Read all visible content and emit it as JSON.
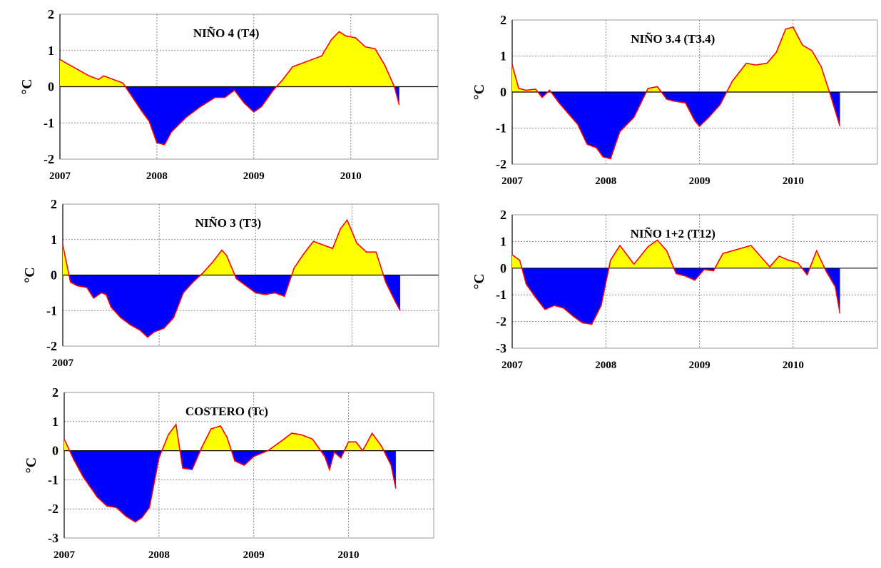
{
  "colors": {
    "positive": "#ffff00",
    "negative": "#0000ff",
    "line": "#ff0000"
  },
  "chart_data": [
    {
      "id": "nino4",
      "type": "area",
      "title": "NIÑO 4 (T4)",
      "ylabel": "°C",
      "ylim": [
        -2,
        2
      ],
      "yticks": [
        "2",
        "1",
        "0",
        "-1",
        "-2"
      ],
      "xlim": [
        2007,
        2010.9
      ],
      "xticks": [
        "2007",
        "2008",
        "2009",
        "2010"
      ],
      "grid": true,
      "series": [
        {
          "x": [
            2007.0,
            2007.1,
            2007.2,
            2007.3,
            2007.4,
            2007.45,
            2007.55,
            2007.65,
            2007.75,
            2007.85,
            2007.92,
            2008.0,
            2008.08,
            2008.15,
            2008.3,
            2008.45,
            2008.6,
            2008.7,
            2008.8,
            2008.9,
            2009.0,
            2009.08,
            2009.2,
            2009.3,
            2009.4,
            2009.5,
            2009.6,
            2009.7,
            2009.8,
            2009.88,
            2009.95,
            2010.05,
            2010.15,
            2010.25,
            2010.35,
            2010.45,
            2010.5
          ],
          "y": [
            0.75,
            0.6,
            0.45,
            0.3,
            0.2,
            0.3,
            0.2,
            0.1,
            -0.3,
            -0.7,
            -0.95,
            -1.55,
            -1.6,
            -1.25,
            -0.85,
            -0.55,
            -0.3,
            -0.3,
            -0.1,
            -0.45,
            -0.7,
            -0.55,
            -0.1,
            0.2,
            0.55,
            0.65,
            0.75,
            0.85,
            1.3,
            1.52,
            1.4,
            1.35,
            1.1,
            1.05,
            0.6,
            0.0,
            -0.5
          ]
        }
      ]
    },
    {
      "id": "nino34",
      "type": "area",
      "title": "NIÑO 3.4 (T3.4)",
      "ylabel": "°C",
      "ylim": [
        -2,
        2
      ],
      "yticks": [
        "2",
        "1",
        "0",
        "-1",
        "-2"
      ],
      "xlim": [
        2007,
        2010.9
      ],
      "xticks": [
        "2007",
        "2008",
        "2009",
        "2010"
      ],
      "grid": true,
      "series": [
        {
          "x": [
            2007.0,
            2007.07,
            2007.15,
            2007.25,
            2007.32,
            2007.4,
            2007.5,
            2007.6,
            2007.7,
            2007.8,
            2007.9,
            2007.97,
            2008.05,
            2008.15,
            2008.3,
            2008.45,
            2008.55,
            2008.65,
            2008.72,
            2008.85,
            2008.95,
            2009.0,
            2009.1,
            2009.22,
            2009.35,
            2009.5,
            2009.6,
            2009.72,
            2009.82,
            2009.92,
            2010.0,
            2010.1,
            2010.2,
            2010.3,
            2010.4,
            2010.5
          ],
          "y": [
            0.75,
            0.1,
            0.05,
            0.08,
            -0.15,
            0.05,
            -0.3,
            -0.6,
            -0.9,
            -1.45,
            -1.55,
            -1.8,
            -1.85,
            -1.1,
            -0.7,
            0.1,
            0.15,
            -0.2,
            -0.25,
            -0.3,
            -0.8,
            -0.95,
            -0.7,
            -0.35,
            0.3,
            0.8,
            0.75,
            0.8,
            1.1,
            1.75,
            1.8,
            1.3,
            1.15,
            0.7,
            -0.1,
            -0.95
          ]
        }
      ]
    },
    {
      "id": "nino3",
      "type": "area",
      "title": "NIÑO 3 (T3)",
      "ylabel": "°C",
      "ylim": [
        -2,
        2
      ],
      "yticks": [
        "2",
        "1",
        "0",
        "-1",
        "-2"
      ],
      "xlim": [
        2007,
        2010.9
      ],
      "xticks": [
        "2007"
      ],
      "grid": true,
      "series": [
        {
          "x": [
            2007.0,
            2007.08,
            2007.15,
            2007.25,
            2007.32,
            2007.4,
            2007.45,
            2007.5,
            2007.6,
            2007.7,
            2007.8,
            2007.88,
            2007.95,
            2008.05,
            2008.15,
            2008.25,
            2008.35,
            2008.45,
            2008.55,
            2008.65,
            2008.7,
            2008.8,
            2008.9,
            2009.0,
            2009.1,
            2009.2,
            2009.3,
            2009.4,
            2009.5,
            2009.6,
            2009.7,
            2009.8,
            2009.88,
            2009.95,
            2010.05,
            2010.15,
            2010.25,
            2010.35,
            2010.45,
            2010.5
          ],
          "y": [
            0.85,
            -0.2,
            -0.3,
            -0.35,
            -0.65,
            -0.5,
            -0.55,
            -0.9,
            -1.2,
            -1.4,
            -1.55,
            -1.75,
            -1.6,
            -1.5,
            -1.2,
            -0.5,
            -0.2,
            0.05,
            0.35,
            0.7,
            0.55,
            -0.1,
            -0.3,
            -0.5,
            -0.55,
            -0.5,
            -0.6,
            0.2,
            0.6,
            0.95,
            0.85,
            0.75,
            1.3,
            1.55,
            0.9,
            0.65,
            0.65,
            -0.2,
            -0.75,
            -1.0
          ]
        }
      ]
    },
    {
      "id": "nino12",
      "type": "area",
      "title": "NIÑO 1+2 (T12)",
      "ylabel": "°C",
      "ylim": [
        -3,
        2
      ],
      "yticks": [
        "2",
        "1",
        "0",
        "-1",
        "-2",
        "-3"
      ],
      "xlim": [
        2007,
        2010.9
      ],
      "xticks": [
        "2007",
        "2008",
        "2009",
        "2010"
      ],
      "grid": true,
      "series": [
        {
          "x": [
            2007.0,
            2007.08,
            2007.15,
            2007.25,
            2007.35,
            2007.45,
            2007.55,
            2007.65,
            2007.75,
            2007.85,
            2007.95,
            2008.05,
            2008.15,
            2008.3,
            2008.45,
            2008.55,
            2008.65,
            2008.75,
            2008.85,
            2008.95,
            2009.05,
            2009.15,
            2009.25,
            2009.4,
            2009.55,
            2009.65,
            2009.75,
            2009.85,
            2009.95,
            2010.05,
            2010.15,
            2010.25,
            2010.35,
            2010.45,
            2010.5
          ],
          "y": [
            0.5,
            0.3,
            -0.6,
            -1.1,
            -1.55,
            -1.4,
            -1.5,
            -1.8,
            -2.05,
            -2.1,
            -1.4,
            0.3,
            0.85,
            0.15,
            0.8,
            1.05,
            0.65,
            -0.2,
            -0.3,
            -0.45,
            -0.05,
            -0.1,
            0.55,
            0.7,
            0.85,
            0.45,
            0.05,
            0.45,
            0.3,
            0.2,
            -0.25,
            0.65,
            -0.1,
            -0.7,
            -1.7
          ]
        }
      ]
    },
    {
      "id": "costero",
      "type": "area",
      "title": "COSTERO (Tc)",
      "ylabel": "°C",
      "ylim": [
        -3,
        2
      ],
      "yticks": [
        "2",
        "1",
        "0",
        "-1",
        "-2",
        "-3"
      ],
      "xlim": [
        2007,
        2010.9
      ],
      "xticks": [
        "2007",
        "2008",
        "2009",
        "2010"
      ],
      "grid": true,
      "series": [
        {
          "x": [
            2007.0,
            2007.1,
            2007.2,
            2007.35,
            2007.45,
            2007.55,
            2007.65,
            2007.75,
            2007.82,
            2007.9,
            2008.0,
            2008.1,
            2008.18,
            2008.25,
            2008.35,
            2008.45,
            2008.55,
            2008.65,
            2008.72,
            2008.8,
            2008.9,
            2009.0,
            2009.15,
            2009.3,
            2009.4,
            2009.5,
            2009.62,
            2009.75,
            2009.8,
            2009.85,
            2009.92,
            2010.0,
            2010.08,
            2010.15,
            2010.25,
            2010.35,
            2010.45,
            2010.5
          ],
          "y": [
            0.4,
            -0.3,
            -0.9,
            -1.6,
            -1.9,
            -1.95,
            -2.25,
            -2.45,
            -2.3,
            -1.95,
            -0.25,
            0.55,
            0.9,
            -0.6,
            -0.65,
            0.1,
            0.75,
            0.85,
            0.45,
            -0.35,
            -0.5,
            -0.2,
            0.0,
            0.35,
            0.6,
            0.55,
            0.4,
            -0.2,
            -0.65,
            -0.05,
            -0.25,
            0.3,
            0.3,
            0.0,
            0.6,
            0.15,
            -0.5,
            -1.3
          ]
        }
      ]
    }
  ]
}
